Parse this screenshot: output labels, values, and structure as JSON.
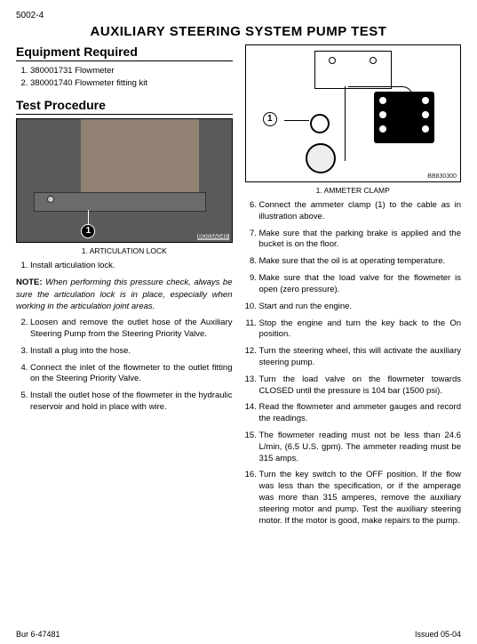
{
  "page_ref": "5002-4",
  "title": "AUXILIARY STEERING SYSTEM PUMP TEST",
  "left": {
    "equip_heading": "Equipment Required",
    "equipment": [
      "380001731 Flowmeter",
      "380001740 Flowmeter fitting kit"
    ],
    "proc_heading": "Test Procedure",
    "fig_code": "BD03A040",
    "caption": "1. ARTICULATION LOCK",
    "step1": "Install articulation lock.",
    "note_label": "NOTE:",
    "note": "When performing this pressure check, always be sure the articulation lock is in place, especially when working in the articulation joint areas.",
    "steps_rest": [
      "Loosen and remove the outlet hose of the Auxiliary Steering Pump from the Steering Priority Valve.",
      "Install a plug into the hose.",
      "Connect the inlet of the flowmeter to the outlet fitting on the Steering Priority Valve.",
      "Install the outlet hose of the flowmeter in the hydraulic reservoir and hold in place with wire."
    ]
  },
  "right": {
    "fig_code": "BB830300",
    "caption": "1. AMMETER CLAMP",
    "steps": [
      "Connect the ammeter clamp (1) to the cable as in illustration above.",
      "Make sure that the parking brake is applied and the bucket is on the floor.",
      "Make sure that the oil is at operating temperature.",
      "Make sure that the load valve for the flowmeter is open (zero pressure).",
      "Start and run the engine.",
      "Stop the engine and turn the key back to the On position.",
      "Turn the steering wheel, this will activate the auxiliary steering pump.",
      "Turn the load valve on the flowmeter towards CLOSED until the pressure is 104 bar (1500 psi).",
      "Read the flowmeter and ammeter gauges and record the readings.",
      "The flowmeter reading must not be less than 24.6 L/min, (6.5 U.S. gpm). The ammeter reading must be 315 amps.",
      "Turn the key switch to the OFF position. If the flow was less than the specification, or if the amperage was more than 315 amperes, remove the auxiliary steering motor and pump. Test the auxiliary steering motor. If the motor is good, make repairs to the pump."
    ]
  },
  "footer_left": "Bur 6-47481",
  "footer_right": "Issued 05-04"
}
